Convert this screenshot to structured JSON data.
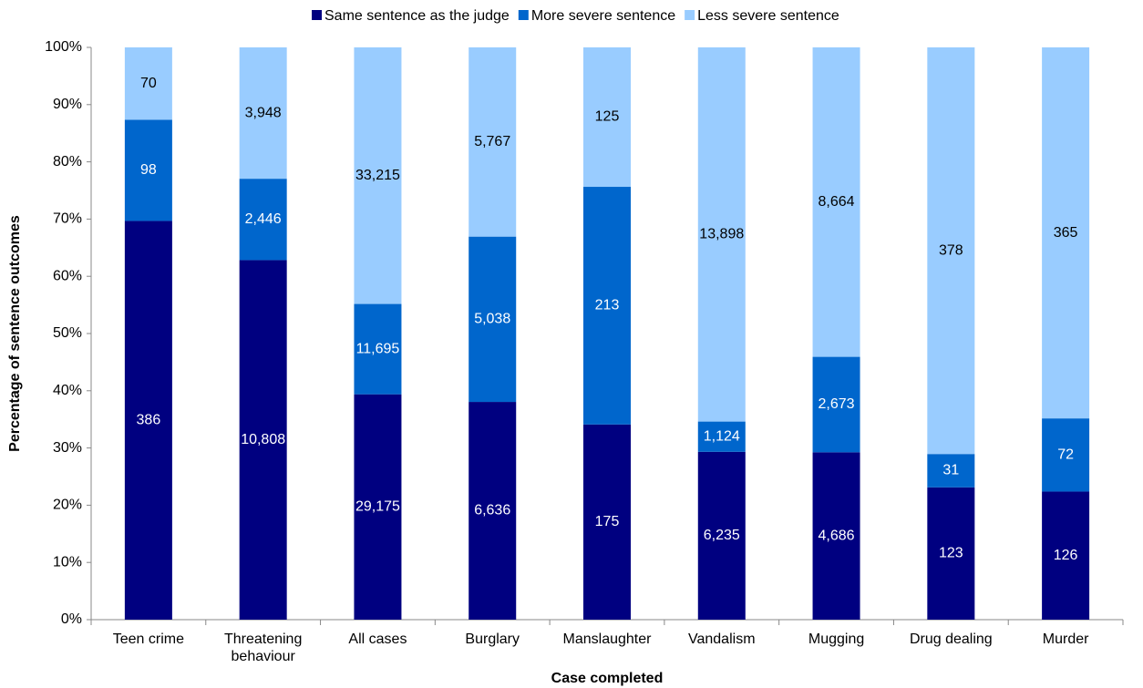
{
  "chart_data": {
    "type": "bar",
    "stacking": "percent",
    "x_label": "Case completed",
    "y_label": "Percentage of sentence outcomes",
    "categories": [
      "Teen crime",
      "Threatening behaviour",
      "All cases",
      "Burglary",
      "Manslaughter",
      "Vandalism",
      "Mugging",
      "Drug dealing",
      "Murder"
    ],
    "series": [
      {
        "name": "Same sentence as the judge",
        "color": "#000080",
        "values": [
          386,
          10808,
          29175,
          6636,
          175,
          6235,
          4686,
          123,
          126
        ],
        "value_labels": [
          "386",
          "10,808",
          "29,175",
          "6,636",
          "175",
          "6,235",
          "4,686",
          "123",
          "126"
        ]
      },
      {
        "name": "More severe sentence",
        "color": "#0066cc",
        "values": [
          98,
          2446,
          11695,
          5038,
          213,
          1124,
          2673,
          31,
          72
        ],
        "value_labels": [
          "98",
          "2,446",
          "11,695",
          "5,038",
          "213",
          "1,124",
          "2,673",
          "31",
          "72"
        ]
      },
      {
        "name": "Less severe sentence",
        "color": "#99ccff",
        "values": [
          70,
          3948,
          33215,
          5767,
          125,
          13898,
          8664,
          378,
          365
        ],
        "value_labels": [
          "70",
          "3,948",
          "33,215",
          "5,767",
          "125",
          "13,898",
          "8,664",
          "378",
          "365"
        ]
      }
    ],
    "ylim": [
      0,
      100
    ],
    "yticks": [
      {
        "value": 0,
        "label": "0%"
      },
      {
        "value": 10,
        "label": "10%"
      },
      {
        "value": 20,
        "label": "20%"
      },
      {
        "value": 30,
        "label": "30%"
      },
      {
        "value": 40,
        "label": "40%"
      },
      {
        "value": 50,
        "label": "50%"
      },
      {
        "value": 60,
        "label": "60%"
      },
      {
        "value": 70,
        "label": "70%"
      },
      {
        "value": 80,
        "label": "80%"
      },
      {
        "value": 90,
        "label": "90%"
      },
      {
        "value": 100,
        "label": "100%"
      }
    ],
    "legend": "top"
  }
}
